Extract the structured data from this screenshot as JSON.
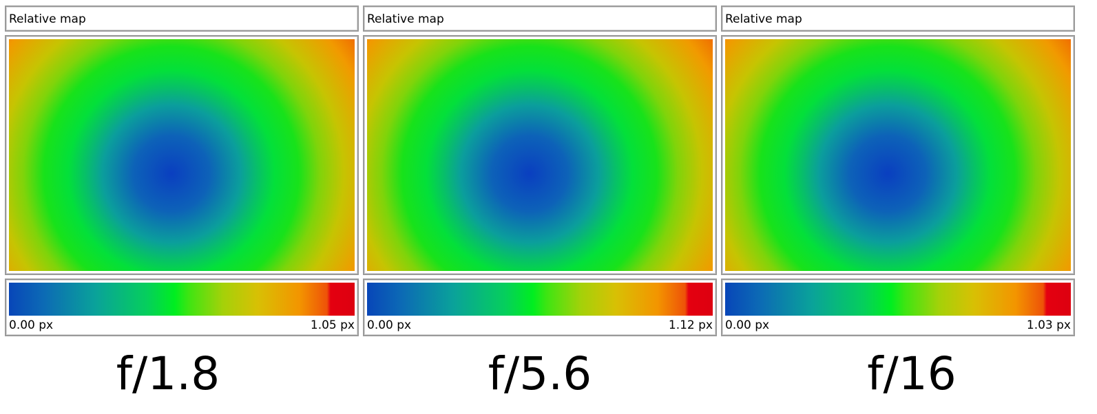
{
  "panels": [
    {
      "title": "Relative map",
      "scale_min": "0.00 px",
      "scale_max": "1.05 px",
      "caption": "f/1.8"
    },
    {
      "title": "Relative map",
      "scale_min": "0.00 px",
      "scale_max": "1.12 px",
      "caption": "f/5.6"
    },
    {
      "title": "Relative map",
      "scale_min": "0.00 px",
      "scale_max": "1.03 px",
      "caption": "f/16"
    }
  ],
  "colors": {
    "low": "#0846b8",
    "mid": "#00ee20",
    "high": "#e40010",
    "border": "#9a9a9a"
  }
}
